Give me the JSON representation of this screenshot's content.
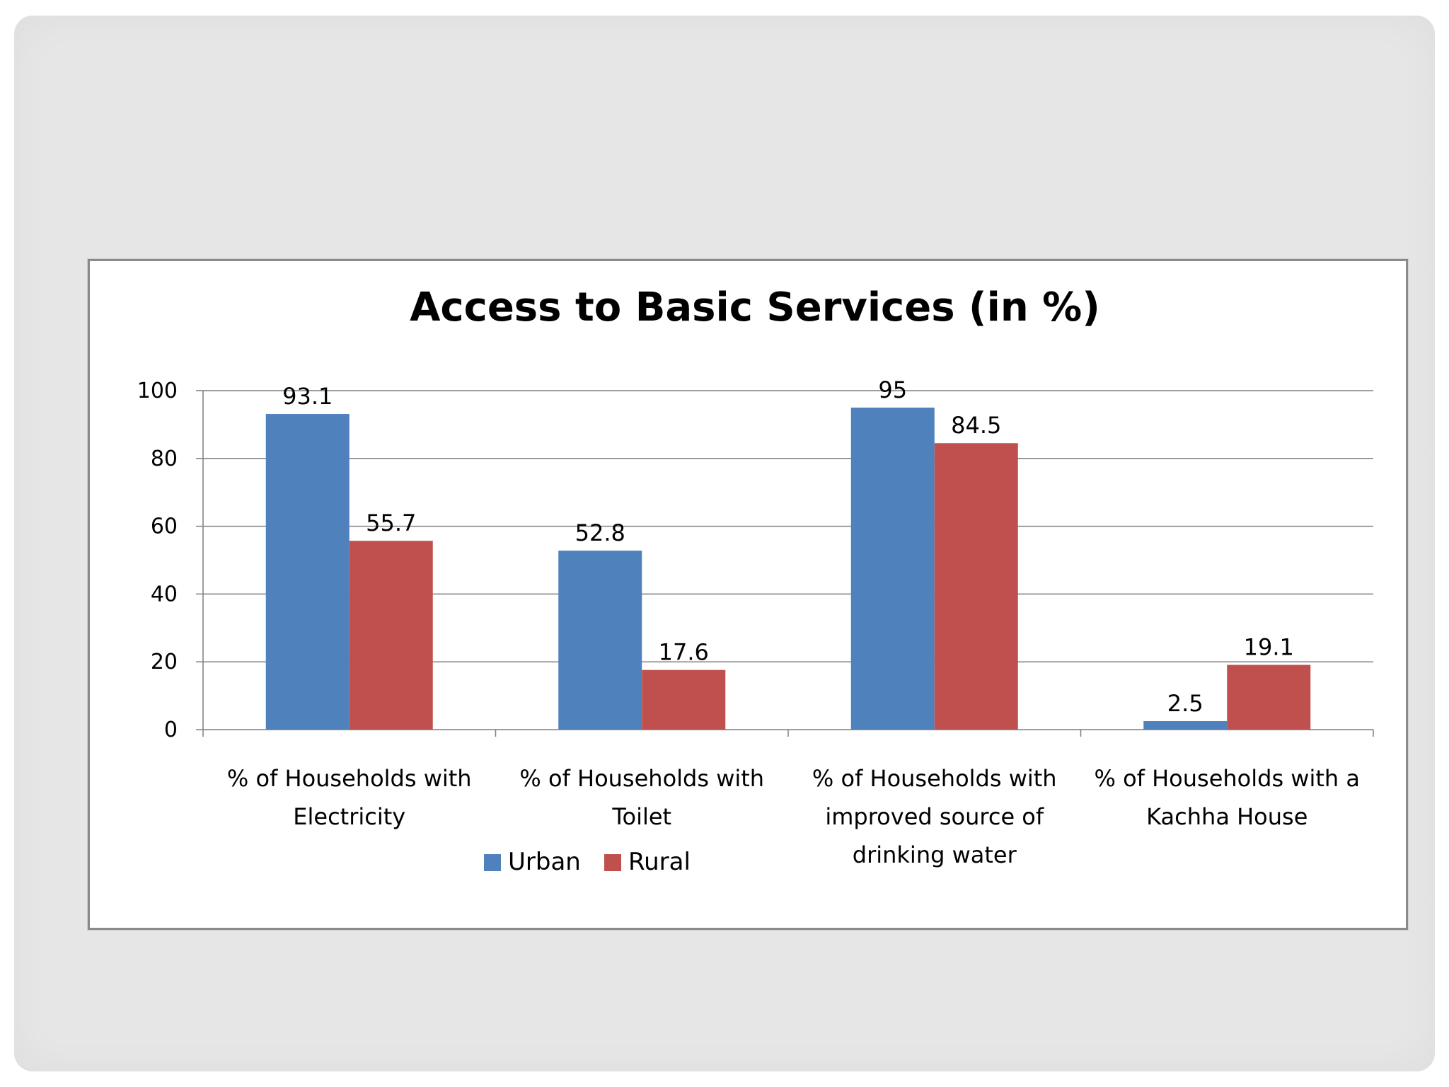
{
  "chart_data": {
    "type": "bar",
    "title": "Access to Basic Services (in %)",
    "categories": [
      [
        "% of Households with",
        "Electricity"
      ],
      [
        "% of Households with",
        "Toilet"
      ],
      [
        "% of Households with",
        "improved source of",
        "drinking water"
      ],
      [
        "% of Households with a",
        "Kachha House"
      ]
    ],
    "series": [
      {
        "name": "Urban",
        "color": "#4f81bd",
        "values": [
          93.1,
          52.8,
          95,
          2.5
        ]
      },
      {
        "name": "Rural",
        "color": "#c0504d",
        "values": [
          55.7,
          17.6,
          84.5,
          19.1
        ]
      }
    ],
    "ylim": [
      0,
      100
    ],
    "yticks": [
      0,
      20,
      40,
      60,
      80,
      100
    ],
    "grid": true,
    "xlabel": "",
    "ylabel": "",
    "legend": "bottom-left"
  }
}
